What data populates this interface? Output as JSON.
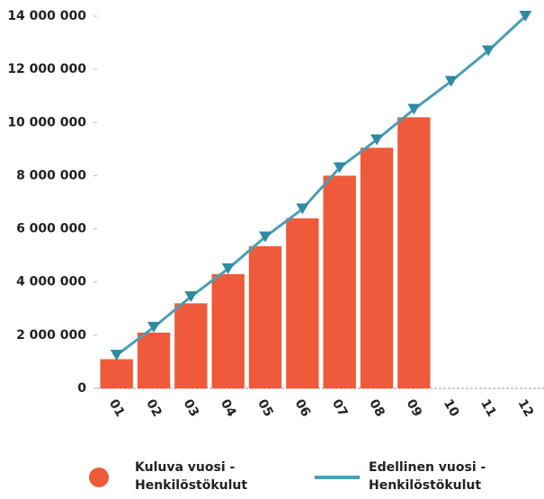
{
  "chart_data": {
    "type": "bar_line",
    "categories": [
      "01",
      "02",
      "03",
      "04",
      "05",
      "06",
      "07",
      "08",
      "09",
      "10",
      "11",
      "12"
    ],
    "series": [
      {
        "name": "Kuluva vuosi - Henkilöstökulut",
        "type": "bar",
        "color": "#ef5a3a",
        "values": [
          1100000,
          2100000,
          3200000,
          4300000,
          5350000,
          6400000,
          8000000,
          9050000,
          10200000,
          null,
          null,
          null
        ]
      },
      {
        "name": "Edellinen vuosi - Henkilöstökulut",
        "type": "line",
        "color": "#4a9fb3",
        "values": [
          1250000,
          2300000,
          3450000,
          4500000,
          5700000,
          6750000,
          8300000,
          9350000,
          10500000,
          11550000,
          12700000,
          14000000
        ]
      }
    ],
    "ylim": [
      0,
      14000000
    ],
    "yticks": [
      0,
      {
        "value": 2000000,
        "label": "2 000 000"
      },
      {
        "value": 4000000,
        "label": "4 000 000"
      },
      {
        "value": 6000000,
        "label": "6 000 000"
      },
      {
        "value": 8000000,
        "label": "8 000 000"
      },
      {
        "value": 10000000,
        "label": "10 000 000"
      },
      {
        "value": 12000000,
        "label": "12 000 000"
      },
      {
        "value": 14000000,
        "label": "14 000 000"
      }
    ],
    "grid": false
  }
}
